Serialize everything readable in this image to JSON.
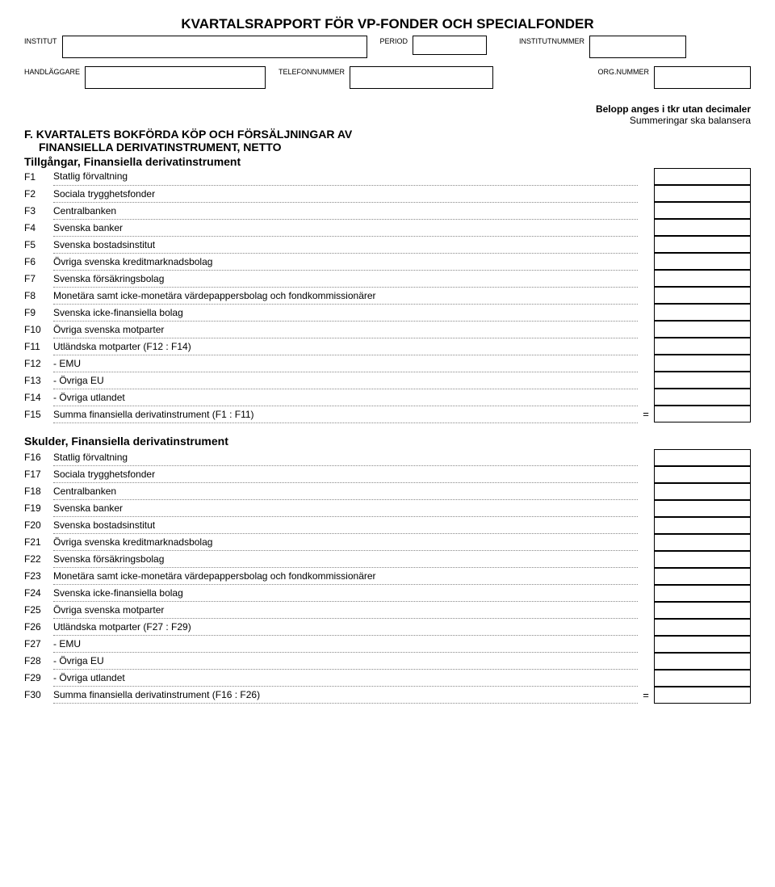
{
  "doc_title": "KVARTALSRAPPORT FÖR VP-FONDER OCH SPECIALFONDER",
  "header": {
    "institut": "INSTITUT",
    "period": "PERIOD",
    "institutnummer": "INSTITUTNUMMER",
    "handlaggare": "HANDLÄGGARE",
    "telefonnummer": "TELEFONNUMMER",
    "orgnummer": "ORG.NUMMER"
  },
  "notes": {
    "line1": "Belopp anges i tkr utan decimaler",
    "line2": "Summeringar ska balansera"
  },
  "section_f": {
    "heading_line1": "F. KVARTALETS BOKFÖRDA KÖP OCH FÖRSÄLJNINGAR AV",
    "heading_line2": "FINANSIELLA DERIVATINSTRUMENT, NETTO",
    "group1_title": "Tillgångar, Finansiella derivatinstrument",
    "group2_title": "Skulder, Finansiella derivatinstrument"
  },
  "rows1": [
    {
      "code": "F1",
      "label": "Statlig förvaltning",
      "indent": false,
      "sum": false
    },
    {
      "code": "F2",
      "label": "Sociala trygghetsfonder",
      "indent": false,
      "sum": false
    },
    {
      "code": "F3",
      "label": "Centralbanken",
      "indent": false,
      "sum": false
    },
    {
      "code": "F4",
      "label": "Svenska banker",
      "indent": false,
      "sum": false
    },
    {
      "code": "F5",
      "label": "Svenska bostadsinstitut",
      "indent": false,
      "sum": false
    },
    {
      "code": "F6",
      "label": "Övriga svenska kreditmarknadsbolag",
      "indent": false,
      "sum": false
    },
    {
      "code": "F7",
      "label": "Svenska försäkringsbolag",
      "indent": false,
      "sum": false
    },
    {
      "code": "F8",
      "label": "Monetära samt icke-monetära värdepappersbolag och fondkommissionärer",
      "indent": false,
      "sum": false
    },
    {
      "code": "F9",
      "label": "Svenska icke-finansiella bolag",
      "indent": false,
      "sum": false
    },
    {
      "code": "F10",
      "label": "Övriga svenska motparter",
      "indent": false,
      "sum": false
    },
    {
      "code": "F11",
      "label": "Utländska motparter (F12 : F14)",
      "indent": false,
      "sum": false
    },
    {
      "code": "F12",
      "label": "- EMU",
      "indent": true,
      "sum": false
    },
    {
      "code": "F13",
      "label": "- Övriga EU",
      "indent": true,
      "sum": false
    },
    {
      "code": "F14",
      "label": "- Övriga utlandet",
      "indent": true,
      "sum": false
    },
    {
      "code": "F15",
      "label": "Summa finansiella derivatinstrument (F1 : F11)",
      "indent": false,
      "sum": true
    }
  ],
  "rows2": [
    {
      "code": "F16",
      "label": "Statlig förvaltning",
      "indent": false,
      "sum": false
    },
    {
      "code": "F17",
      "label": "Sociala trygghetsfonder",
      "indent": false,
      "sum": false
    },
    {
      "code": "F18",
      "label": "Centralbanken",
      "indent": false,
      "sum": false
    },
    {
      "code": "F19",
      "label": "Svenska banker",
      "indent": false,
      "sum": false
    },
    {
      "code": "F20",
      "label": "Svenska bostadsinstitut",
      "indent": false,
      "sum": false
    },
    {
      "code": "F21",
      "label": "Övriga svenska kreditmarknadsbolag",
      "indent": false,
      "sum": false
    },
    {
      "code": "F22",
      "label": "Svenska försäkringsbolag",
      "indent": false,
      "sum": false
    },
    {
      "code": "F23",
      "label": "Monetära samt icke-monetära värdepappersbolag och fondkommissionärer",
      "indent": false,
      "sum": false
    },
    {
      "code": "F24",
      "label": "Svenska icke-finansiella bolag",
      "indent": false,
      "sum": false
    },
    {
      "code": "F25",
      "label": "Övriga svenska motparter",
      "indent": false,
      "sum": false
    },
    {
      "code": "F26",
      "label": "Utländska motparter (F27 : F29)",
      "indent": false,
      "sum": false
    },
    {
      "code": "F27",
      "label": "- EMU",
      "indent": true,
      "sum": false
    },
    {
      "code": "F28",
      "label": "- Övriga EU",
      "indent": true,
      "sum": false
    },
    {
      "code": "F29",
      "label": "- Övriga utlandet",
      "indent": true,
      "sum": false
    },
    {
      "code": "F30",
      "label": "Summa finansiella derivatinstrument (F16 : F26)",
      "indent": false,
      "sum": true
    }
  ]
}
